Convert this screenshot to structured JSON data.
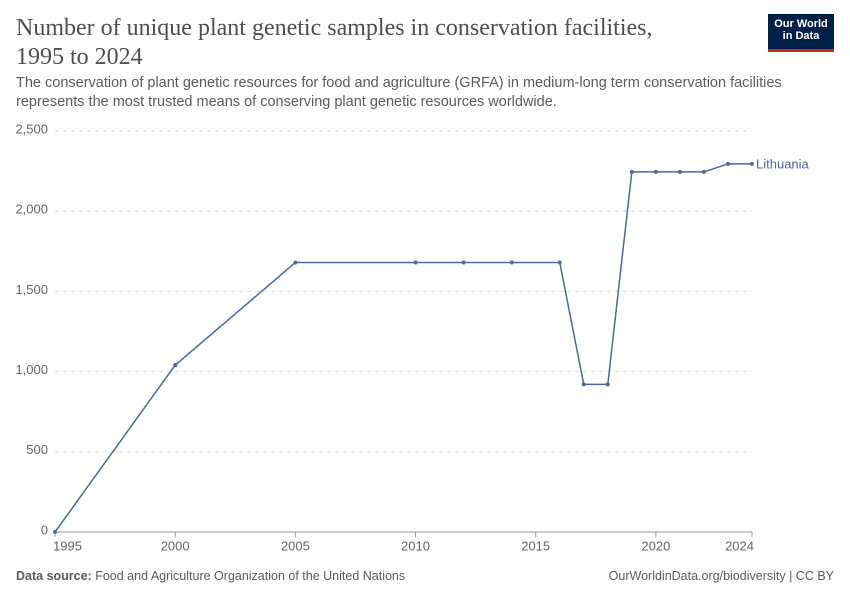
{
  "chart_data": {
    "type": "line",
    "title": "Number of unique plant genetic samples in conservation facilities, 1995 to 2024",
    "subtitle": "The conservation of plant genetic resources for food and agriculture (GRFA) in medium-long term conservation facilities represents the most trusted means of conserving plant genetic resources worldwide.",
    "logo": [
      "Our World",
      "in Data"
    ],
    "source_label": "Data source:",
    "source": "Food and Agriculture Organization of the United Nations",
    "footer_right": "OurWorldinData.org/biodiversity | CC BY",
    "x": [
      1995,
      2000,
      2005,
      2010,
      2012,
      2014,
      2016,
      2017,
      2018,
      2019,
      2020,
      2021,
      2022,
      2023,
      2024
    ],
    "series": [
      {
        "name": "Lithuania",
        "color": "#4c6a9c",
        "values": [
          0,
          1040,
          1680,
          1680,
          1680,
          1680,
          1680,
          920,
          920,
          2245,
          2245,
          2245,
          2245,
          2295,
          2295
        ]
      }
    ],
    "xlim": [
      1995,
      2024
    ],
    "xticks": [
      1995,
      2000,
      2005,
      2010,
      2015,
      2020,
      2024
    ],
    "ylim": [
      0,
      2500
    ],
    "yticks": [
      0,
      500,
      {
        "value": 1000,
        "label": "1,000"
      },
      {
        "value": 1500,
        "label": "1,500"
      },
      {
        "value": 2000,
        "label": "2,000"
      },
      {
        "value": 2500,
        "label": "2,500"
      }
    ],
    "grid": true
  }
}
